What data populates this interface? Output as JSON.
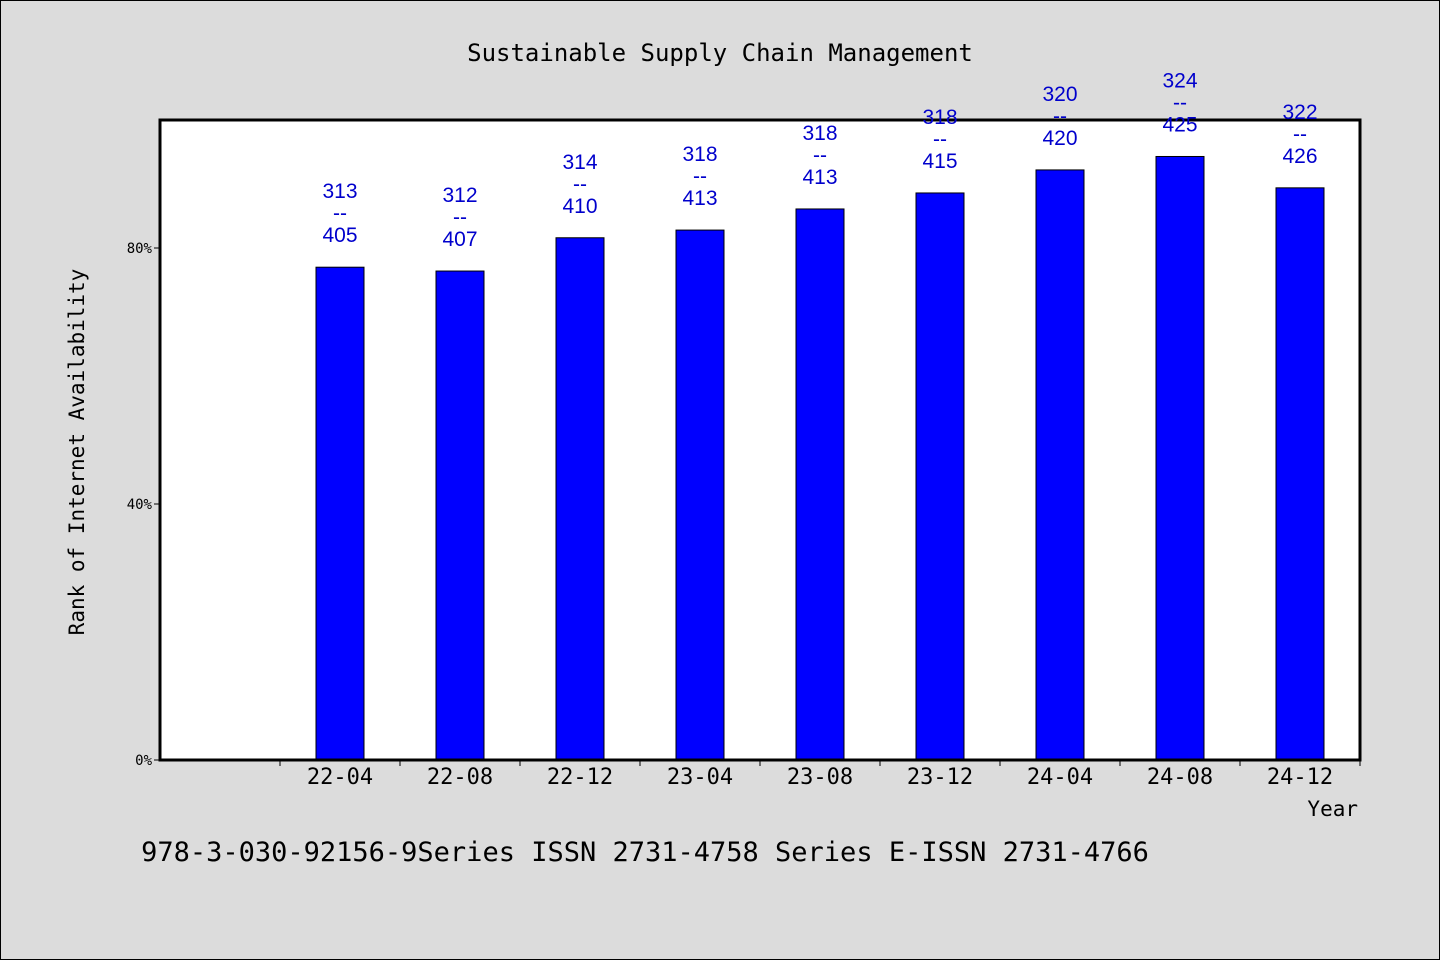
{
  "chart_data": {
    "type": "bar",
    "title": "Sustainable Supply Chain Management",
    "xlabel": "Year",
    "ylabel": "Rank of Internet Availability",
    "ylim": [
      0,
      100
    ],
    "yticks": [
      {
        "value": 0,
        "label": "0%"
      },
      {
        "value": 40,
        "label": "40%"
      },
      {
        "value": 80,
        "label": "80%"
      }
    ],
    "categories": [
      "22-04",
      "22-08",
      "22-12",
      "23-04",
      "23-08",
      "23-12",
      "24-04",
      "24-08",
      "24-12"
    ],
    "values": [
      77.0,
      76.4,
      81.6,
      82.8,
      86.1,
      88.6,
      92.2,
      94.3,
      89.4
    ],
    "data_labels": [
      {
        "top": "313",
        "sep": "--",
        "bottom": "405"
      },
      {
        "top": "312",
        "sep": "--",
        "bottom": "407"
      },
      {
        "top": "314",
        "sep": "--",
        "bottom": "410"
      },
      {
        "top": "318",
        "sep": "--",
        "bottom": "413"
      },
      {
        "top": "318",
        "sep": "--",
        "bottom": "413"
      },
      {
        "top": "318",
        "sep": "--",
        "bottom": "415"
      },
      {
        "top": "320",
        "sep": "--",
        "bottom": "420"
      },
      {
        "top": "324",
        "sep": "--",
        "bottom": "425"
      },
      {
        "top": "322",
        "sep": "--",
        "bottom": "426"
      }
    ],
    "bar_color": "#0000ff",
    "label_color": "#0000cc",
    "grid": false,
    "legend": "none"
  },
  "footer": {
    "text": "978-3-030-92156-9Series ISSN 2731-4758 Series E-ISSN 2731-4766"
  }
}
